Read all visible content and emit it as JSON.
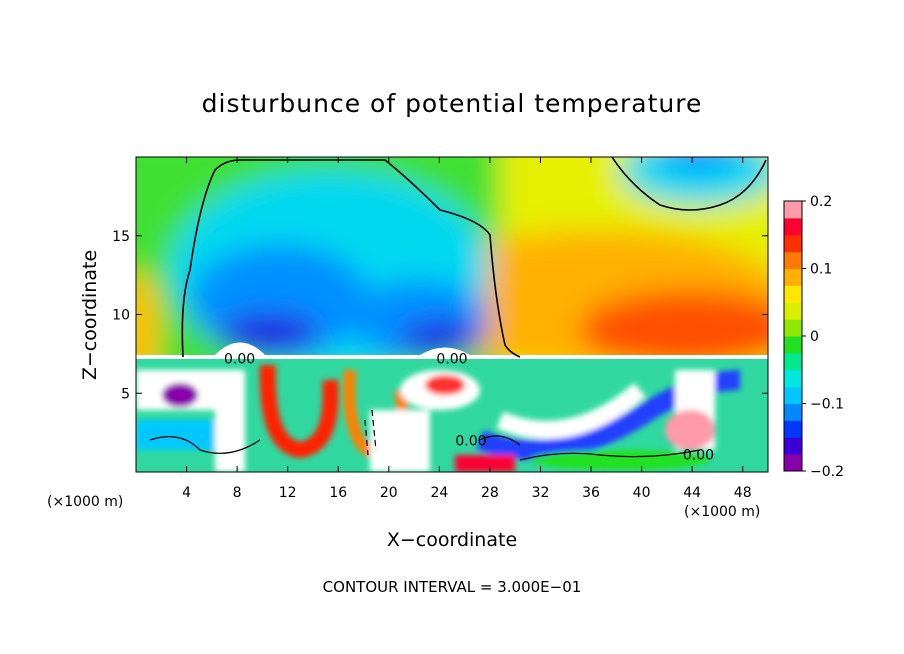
{
  "chart_data": {
    "type": "heatmap",
    "title": "disturbunce of potential temperature",
    "xlabel": "X−coordinate",
    "ylabel": "Z−coordinate",
    "x_unit_left": "(×1000 m)",
    "x_unit_right": "(×1000 m)",
    "footer": "CONTOUR INTERVAL = 3.000E−01",
    "xlim": [
      0,
      50
    ],
    "ylim": [
      0,
      20
    ],
    "x_ticks": [
      4,
      8,
      12,
      16,
      20,
      24,
      28,
      32,
      36,
      40,
      44,
      48
    ],
    "y_ticks": [
      5,
      10,
      15
    ],
    "colorbar": {
      "range": [
        -0.2,
        0.2
      ],
      "tick_values": [
        0.2,
        0.1,
        0,
        -0.1,
        -0.2
      ],
      "tick_labels": [
        "0.2",
        "0.1",
        "0",
        "−0.1",
        "−0.2"
      ],
      "colors": [
        "#8800aa",
        "#3a00d8",
        "#0038ff",
        "#0088ff",
        "#00c8ff",
        "#00e8e0",
        "#00e890",
        "#20e020",
        "#90e800",
        "#d8f000",
        "#ffe800",
        "#ffb000",
        "#ff7a00",
        "#ff3000",
        "#ff0030",
        "#ff9aa8"
      ]
    },
    "contour_labels": [
      {
        "text": "0.00",
        "x": 8.2,
        "z": 7.2
      },
      {
        "text": "0.00",
        "x": 25.0,
        "z": 7.2
      },
      {
        "text": "0.00",
        "x": 26.5,
        "z": 2.0
      },
      {
        "text": "0.00",
        "x": 44.5,
        "z": 1.1
      }
    ]
  }
}
